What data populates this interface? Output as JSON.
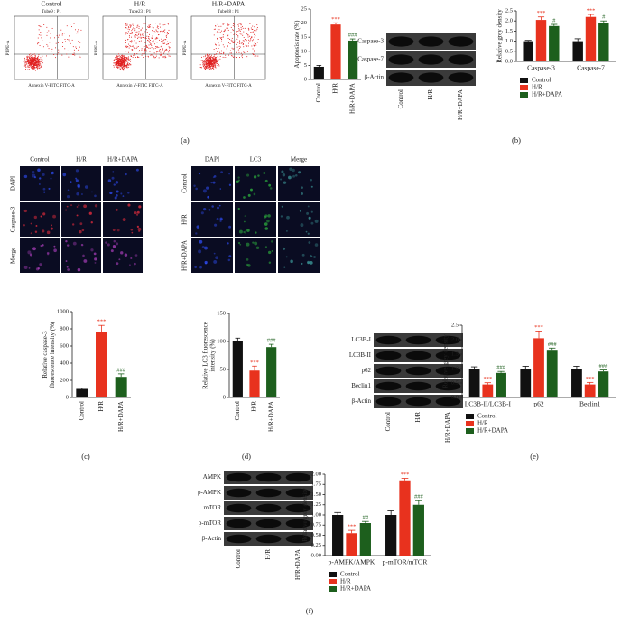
{
  "chart_data": [
    {
      "type": "bar",
      "ylabel": [
        "Apoptosis rate (%)"
      ],
      "categories": [
        "Control",
        "H/R",
        "H/R+DAPA"
      ],
      "values": [
        4.5,
        19.5,
        13.8
      ],
      "errors": [
        0.5,
        0.6,
        0.6
      ],
      "annotations": [
        null,
        "***",
        "###"
      ],
      "colors": [
        "#111111",
        "#e8321e",
        "#1d5f1d"
      ],
      "ylim": [
        0,
        25
      ],
      "yticks": [
        0,
        5,
        10,
        15,
        20,
        25
      ]
    },
    {
      "type": "grouped_bar",
      "ylabel": [
        "Relative grey density"
      ],
      "categories": [
        "Caspase-3",
        "Caspase-7"
      ],
      "series": [
        {
          "name": "Control",
          "color": "#111111",
          "values": [
            1.0,
            1.0
          ],
          "errors": [
            0.04,
            0.12
          ],
          "annotations": [
            null,
            null
          ]
        },
        {
          "name": "H/R",
          "color": "#e8321e",
          "values": [
            2.05,
            2.2
          ],
          "errors": [
            0.15,
            0.12
          ],
          "annotations": [
            "***",
            "***"
          ]
        },
        {
          "name": "H/R+DAPA",
          "color": "#1d5f1d",
          "values": [
            1.75,
            1.9
          ],
          "errors": [
            0.08,
            0.1
          ],
          "annotations": [
            "#",
            "#"
          ]
        }
      ],
      "ylim": [
        0,
        2.5
      ],
      "yticks": [
        {
          "value": 0,
          "label": "0.0"
        },
        0.5,
        {
          "value": 1,
          "label": "1.0"
        },
        1.5,
        {
          "value": 2,
          "label": "2.0"
        },
        2.5
      ]
    },
    {
      "type": "bar",
      "ylabel": [
        "Relative caspase-3",
        "fluorescence intensity (%)"
      ],
      "categories": [
        "Control",
        "H/R",
        "H/R+DAPA"
      ],
      "values": [
        100,
        760,
        240
      ],
      "errors": [
        10,
        80,
        35
      ],
      "annotations": [
        null,
        "***",
        "###"
      ],
      "colors": [
        "#111111",
        "#e8321e",
        "#1d5f1d"
      ],
      "ylim": [
        0,
        1000
      ],
      "yticks": [
        0,
        200,
        400,
        600,
        800,
        1000
      ]
    },
    {
      "type": "bar",
      "ylabel": [
        "Relative LC3 fluorescence",
        "intensity (%)"
      ],
      "categories": [
        "Control",
        "H/R",
        "H/R+DAPA"
      ],
      "values": [
        100,
        48,
        90
      ],
      "errors": [
        6,
        8,
        5
      ],
      "annotations": [
        null,
        "***",
        "###"
      ],
      "colors": [
        "#111111",
        "#e8321e",
        "#1d5f1d"
      ],
      "ylim": [
        0,
        150
      ],
      "yticks": [
        0,
        50,
        100,
        150
      ]
    },
    {
      "type": "grouped_bar",
      "ylabel": [
        "Relative grey density"
      ],
      "categories": [
        "LC3B-II/LC3B-I",
        "p62",
        "Beclin1"
      ],
      "series": [
        {
          "name": "Control",
          "color": "#111111",
          "values": [
            1.0,
            1.0,
            1.0
          ],
          "errors": [
            0.06,
            0.08,
            0.08
          ],
          "annotations": [
            null,
            null,
            null
          ]
        },
        {
          "name": "H/R",
          "color": "#e8321e",
          "values": [
            0.45,
            2.05,
            0.45
          ],
          "errors": [
            0.06,
            0.25,
            0.07
          ],
          "annotations": [
            "***",
            "***",
            "***"
          ]
        },
        {
          "name": "H/R+DAPA",
          "color": "#1d5f1d",
          "values": [
            0.85,
            1.65,
            0.9
          ],
          "errors": [
            0.05,
            0.06,
            0.05
          ],
          "annotations": [
            "###",
            "###",
            "###"
          ]
        }
      ],
      "ylim": [
        0,
        2.5
      ],
      "yticks": [
        {
          "value": 0,
          "label": "0.0"
        },
        0.5,
        {
          "value": 1,
          "label": "1.0"
        },
        1.5,
        {
          "value": 2,
          "label": "2.0"
        },
        2.5
      ]
    },
    {
      "type": "grouped_bar",
      "ylabel": [
        "Relative grey density"
      ],
      "categories": [
        "p-AMPK/AMPK",
        "p-mTOR/mTOR"
      ],
      "series": [
        {
          "name": "Control",
          "color": "#111111",
          "values": [
            1.0,
            1.0
          ],
          "errors": [
            0.06,
            0.1
          ],
          "annotations": [
            null,
            null
          ]
        },
        {
          "name": "H/R",
          "color": "#e8321e",
          "values": [
            0.55,
            1.85
          ],
          "errors": [
            0.07,
            0.05
          ],
          "annotations": [
            "***",
            "***"
          ]
        },
        {
          "name": "H/R+DAPA",
          "color": "#1d5f1d",
          "values": [
            0.8,
            1.25
          ],
          "errors": [
            0.04,
            0.1
          ],
          "annotations": [
            "##",
            "###"
          ]
        }
      ],
      "ylim": [
        0,
        2.0
      ],
      "yticks": [
        {
          "value": 0,
          "label": "0.00"
        },
        {
          "value": 0.25,
          "label": "0.25"
        },
        {
          "value": 0.5,
          "label": "0.50"
        },
        {
          "value": 0.75,
          "label": "0.75"
        },
        {
          "value": 1,
          "label": "1.00"
        },
        {
          "value": 1.25,
          "label": "1.25"
        },
        {
          "value": 1.5,
          "label": "1.50"
        },
        {
          "value": 1.75,
          "label": "1.75"
        },
        {
          "value": 2,
          "label": "2.00"
        }
      ]
    }
  ],
  "flow": {
    "plots": [
      {
        "title": "Control",
        "subtitle": "Tube9 : P1"
      },
      {
        "title": "H/R",
        "subtitle": "Tube23 : P1"
      },
      {
        "title": "H/R+DAPA",
        "subtitle": "Tube28 : P1"
      }
    ],
    "xlabel": "Annexin V-FITC FITC-A",
    "ylabel": "PI PE-A"
  },
  "blots": [
    {
      "bands": [
        "Caspase-3",
        "Caspase-7",
        "β-Actin"
      ],
      "lanes": [
        "Control",
        "H/R",
        "H/R+DAPA"
      ]
    },
    {
      "bands": [
        "LC3B-I",
        "LC3B-II",
        "p62",
        "Beclin1",
        "β-Actin"
      ],
      "lanes": [
        "Control",
        "H/R",
        "H/R+DAPA"
      ]
    },
    {
      "bands": [
        "AMPK",
        "p-AMPK",
        "mTOR",
        "p-mTOR",
        "β-Actin"
      ],
      "lanes": [
        "Control",
        "H/R",
        "H/R+DAPA"
      ]
    }
  ],
  "if_panels": [
    {
      "columns": [
        "Control",
        "H/R",
        "H/R+DAPA"
      ],
      "rows": [
        "DAPI",
        "Caspase-3",
        "Merge"
      ]
    },
    {
      "columns": [
        "DAPI",
        "LC3",
        "Merge"
      ],
      "rows": [
        "Control",
        "H/R",
        "H/R+DAPA"
      ]
    }
  ],
  "panel_labels": [
    "(a)",
    "(b)",
    "(c)",
    "(d)",
    "(e)",
    "(f)"
  ]
}
